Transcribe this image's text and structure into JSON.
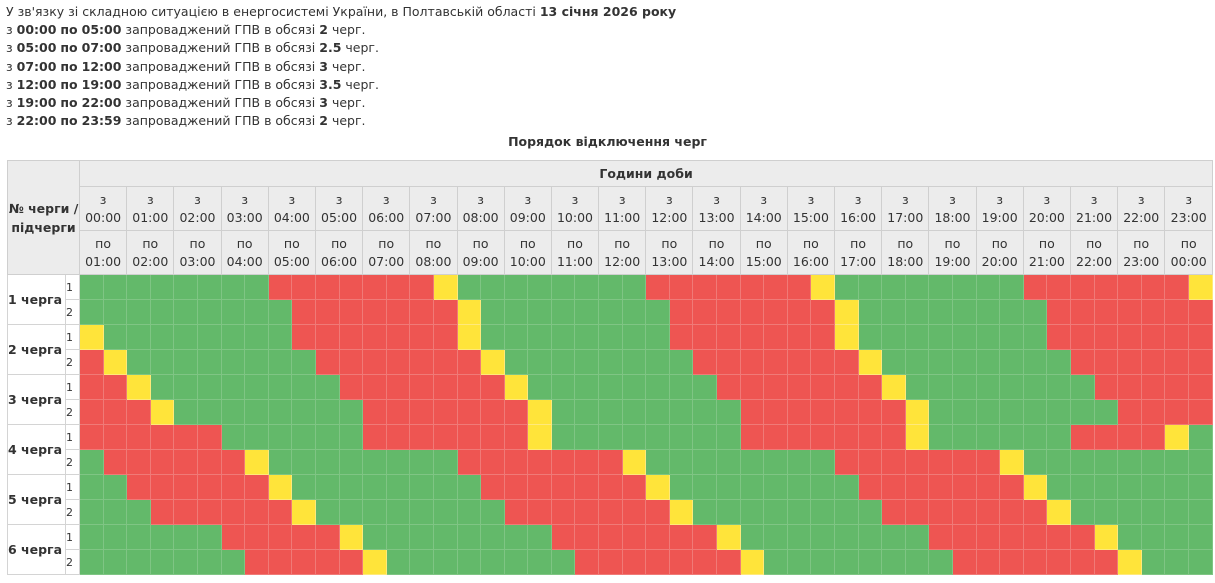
{
  "info": {
    "intro": "У зв'язку зі складною ситуацією в енергосистемі України, в Полтавській області",
    "date": "13 січня 2026 року",
    "lines": [
      {
        "prefix": "з",
        "from": "00:00",
        "mid": "по",
        "to": "05:00",
        "text": "запроваджений ГПВ в обсязі",
        "amount": "2",
        "unit": "черг."
      },
      {
        "prefix": "з",
        "from": "05:00",
        "mid": "по",
        "to": "07:00",
        "text": "запроваджений ГПВ в обсязі",
        "amount": "2.5",
        "unit": "черг."
      },
      {
        "prefix": "з",
        "from": "07:00",
        "mid": "по",
        "to": "12:00",
        "text": "запроваджений ГПВ в обсязі",
        "amount": "3",
        "unit": "черг."
      },
      {
        "prefix": "з",
        "from": "12:00",
        "mid": "по",
        "to": "19:00",
        "text": "запроваджений ГПВ в обсязі",
        "amount": "3.5",
        "unit": "черг."
      },
      {
        "prefix": "з",
        "from": "19:00",
        "mid": "по",
        "to": "22:00",
        "text": "запроваджений ГПВ в обсязі",
        "amount": "3",
        "unit": "черг."
      },
      {
        "prefix": "з",
        "from": "22:00",
        "mid": "по",
        "to": "23:59",
        "text": "запроваджений ГПВ в обсязі",
        "amount": "2",
        "unit": "черг."
      }
    ]
  },
  "caption": "Порядок відключення черг",
  "table": {
    "queue_header": "№ черги / підчерги",
    "hours_header": "Години доби",
    "from_word": "з",
    "to_word": "по",
    "from_times": [
      "00:00",
      "01:00",
      "02:00",
      "03:00",
      "04:00",
      "05:00",
      "06:00",
      "07:00",
      "08:00",
      "09:00",
      "10:00",
      "11:00",
      "12:00",
      "13:00",
      "14:00",
      "15:00",
      "16:00",
      "17:00",
      "18:00",
      "19:00",
      "20:00",
      "21:00",
      "22:00",
      "23:00"
    ],
    "to_times": [
      "01:00",
      "02:00",
      "03:00",
      "04:00",
      "05:00",
      "06:00",
      "07:00",
      "08:00",
      "09:00",
      "10:00",
      "11:00",
      "12:00",
      "13:00",
      "14:00",
      "15:00",
      "16:00",
      "17:00",
      "18:00",
      "19:00",
      "20:00",
      "21:00",
      "22:00",
      "23:00",
      "00:00"
    ],
    "status_colors": {
      "on": "#63b96a",
      "off": "#ee5552",
      "maybe": "#ffe43a"
    },
    "status_legend": "G = power on, R = outage, Y = possible outage; 2 half-hour cells per hour",
    "queues": [
      {
        "label": "1 черга",
        "subs": [
          {
            "label": "1",
            "slots": "GGGGGGGGRRRRRRRYGGGGGGGGRRRRRRRYGGGGGGGGRRRRRRRY"
          },
          {
            "label": "2",
            "slots": "GGGGGGGGGRRRRRRRYGGGGGGGGRRRRRRRYGGGGGGGGRRRRRRR"
          }
        ]
      },
      {
        "label": "2 черга",
        "subs": [
          {
            "label": "1",
            "slots": "YGGGGGGGGRRRRRRRYGGGGGGGGRRRRRRRYGGGGGGGGRRRRRRR"
          },
          {
            "label": "2",
            "slots": "RYGGGGGGGGRRRRRRRYGGGGGGGGRRRRRRRYGGGGGGGGRRRRRR"
          }
        ]
      },
      {
        "label": "3 черга",
        "subs": [
          {
            "label": "1",
            "slots": "RRYGGGGGGGGRRRRRRRYGGGGGGGGRRRRRRRYGGGGGGGGRRRRR"
          },
          {
            "label": "2",
            "slots": "RRRYGGGGGGGGRRRRRRRYGGGGGGGGRRRRRRRYGGGGGGGGRRRR"
          }
        ]
      },
      {
        "label": "4 черга",
        "subs": [
          {
            "label": "1",
            "slots": "RRRRRRGGGGGGRRRRRRRYGGGGGGGGRRRRRRRYGGGGGGRRRRYG"
          },
          {
            "label": "2",
            "slots": "GRRRRRRYGGGGGGGGRRRRRRRYGGGGGGGGRRRRRRRYGGGGGGGG"
          }
        ]
      },
      {
        "label": "5 черга",
        "subs": [
          {
            "label": "1",
            "slots": "GGRRRRRRYGGGGGGGGRRRRRRRYGGGGGGGGRRRRRRRYGGGGGGG"
          },
          {
            "label": "2",
            "slots": "GGGRRRRRRYGGGGGGGGRRRRRRRYGGGGGGGGRRRRRRRYGGGGGG"
          }
        ]
      },
      {
        "label": "6 черга",
        "subs": [
          {
            "label": "1",
            "slots": "GGGGGGRRRRRYGGGGGGGGRRRRRRRYGGGGGGGGRRRRRRRYGGGG"
          },
          {
            "label": "2",
            "slots": "GGGGGGGRRRRRYGGGGGGGGRRRRRRRYGGGGGGGGRRRRRRRYGGG"
          }
        ]
      }
    ]
  }
}
